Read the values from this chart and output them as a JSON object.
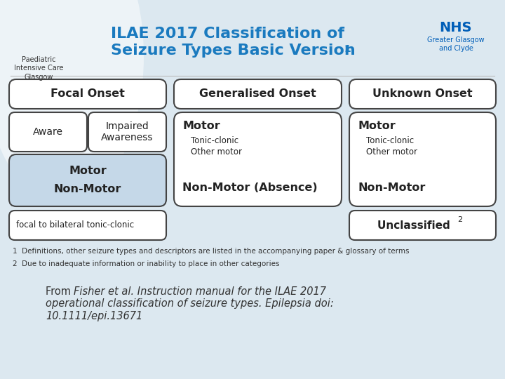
{
  "bg_color": "#dce8f0",
  "title_line1": "ILAE 2017 Classification of",
  "title_line2": "Seizure Types Basic Version ",
  "title_superscript": "1",
  "title_color": "#1a7abf",
  "box_border_color": "#444444",
  "footnote1": "1  Definitions, other seizure types and descriptors are listed in the accompanying paper & glossary of terms",
  "footnote2": "2  Due to inadequate information or inability to place in other categories",
  "citation_line1": "From  Fisher et al. Instruction manual for the ILAE 2017",
  "citation_line2": "operational classification of seizure types. Epilepsia doi:",
  "citation_line3": "10.1111/epi.13671",
  "citation_from": "From"
}
